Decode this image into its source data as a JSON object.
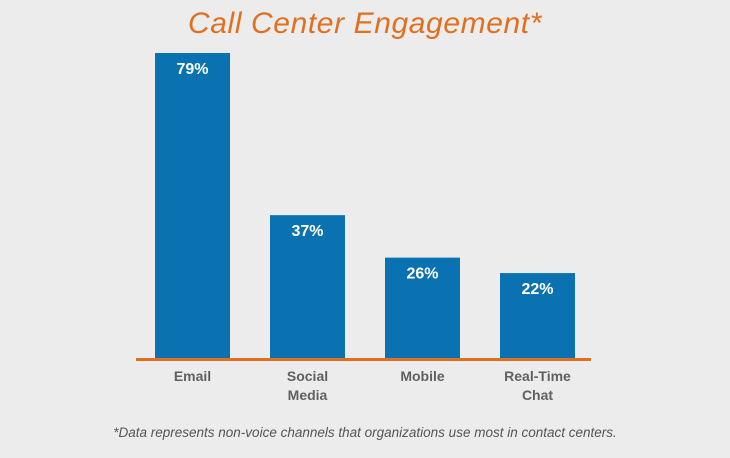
{
  "chart_data": {
    "type": "bar",
    "title": "Call Center Engagement*",
    "categories": [
      "Email",
      "Social Media",
      "Mobile",
      "Real-Time Chat"
    ],
    "category_lines": [
      [
        "Email"
      ],
      [
        "Social",
        "Media"
      ],
      [
        "Mobile"
      ],
      [
        "Real-Time",
        "Chat"
      ]
    ],
    "values": [
      79,
      37,
      26,
      22
    ],
    "value_labels": [
      "79%",
      "37%",
      "26%",
      "22%"
    ],
    "ylim": [
      0,
      79
    ],
    "xlabel": "",
    "ylabel": "",
    "grid": false,
    "footnote": "*Data represents non-voice channels that organizations use most in contact centers.",
    "colors": {
      "bar": "#0a72b0",
      "axis": "#e07020",
      "title": "#e07020",
      "value_text": "#ffffff",
      "tick_text": "#606060"
    }
  }
}
